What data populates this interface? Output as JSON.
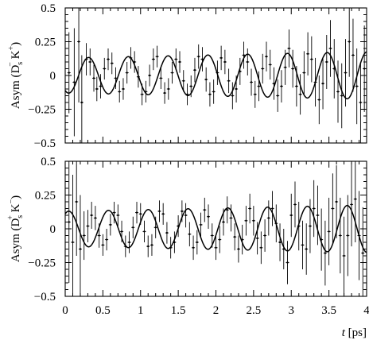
{
  "chart_data": [
    {
      "type": "scatter",
      "panel": "top",
      "ylabel": "Asym (D",
      "ylabel_sub": "s",
      "ylabel_sup": "−",
      "ylabel_tail": " K",
      "ylabel_tail_sup": "+",
      "ylabel_close": ")",
      "xlim": [
        0,
        4
      ],
      "ylim": [
        -0.5,
        0.5
      ],
      "yticks": [
        -0.5,
        -0.25,
        0,
        0.25,
        0.5
      ],
      "ytick_labels": [
        "−0.5",
        "−0.25",
        "0",
        "0.25",
        "0.5"
      ],
      "fit": {
        "amplitude": 0.13,
        "omega": 11.9,
        "phase": 2.6,
        "decay": 0.0
      },
      "points": [
        {
          "x": 0.05,
          "y": 0.02,
          "err": 0.3
        },
        {
          "x": 0.12,
          "y": -0.05,
          "err": 0.4
        },
        {
          "x": 0.18,
          "y": 0.25,
          "err": 0.45
        },
        {
          "x": 0.22,
          "y": -0.2,
          "err": 0.35
        },
        {
          "x": 0.28,
          "y": 0.12,
          "err": 0.12
        },
        {
          "x": 0.33,
          "y": 0.1,
          "err": 0.1
        },
        {
          "x": 0.38,
          "y": -0.02,
          "err": 0.1
        },
        {
          "x": 0.42,
          "y": -0.1,
          "err": 0.09
        },
        {
          "x": 0.47,
          "y": -0.08,
          "err": 0.09
        },
        {
          "x": 0.52,
          "y": 0.05,
          "err": 0.08
        },
        {
          "x": 0.57,
          "y": 0.12,
          "err": 0.08
        },
        {
          "x": 0.62,
          "y": 0.09,
          "err": 0.08
        },
        {
          "x": 0.67,
          "y": -0.02,
          "err": 0.08
        },
        {
          "x": 0.72,
          "y": -0.12,
          "err": 0.08
        },
        {
          "x": 0.77,
          "y": -0.1,
          "err": 0.08
        },
        {
          "x": 0.82,
          "y": 0.02,
          "err": 0.08
        },
        {
          "x": 0.87,
          "y": 0.13,
          "err": 0.08
        },
        {
          "x": 0.92,
          "y": 0.1,
          "err": 0.08
        },
        {
          "x": 0.97,
          "y": -0.01,
          "err": 0.08
        },
        {
          "x": 1.02,
          "y": -0.14,
          "err": 0.08
        },
        {
          "x": 1.07,
          "y": -0.12,
          "err": 0.08
        },
        {
          "x": 1.12,
          "y": 0.0,
          "err": 0.08
        },
        {
          "x": 1.17,
          "y": 0.12,
          "err": 0.08
        },
        {
          "x": 1.22,
          "y": 0.14,
          "err": 0.08
        },
        {
          "x": 1.27,
          "y": -0.02,
          "err": 0.08
        },
        {
          "x": 1.32,
          "y": -0.13,
          "err": 0.08
        },
        {
          "x": 1.37,
          "y": -0.1,
          "err": 0.08
        },
        {
          "x": 1.42,
          "y": 0.02,
          "err": 0.08
        },
        {
          "x": 1.47,
          "y": 0.12,
          "err": 0.08
        },
        {
          "x": 1.52,
          "y": 0.1,
          "err": 0.08
        },
        {
          "x": 1.57,
          "y": -0.04,
          "err": 0.08
        },
        {
          "x": 1.62,
          "y": -0.14,
          "err": 0.08
        },
        {
          "x": 1.67,
          "y": -0.08,
          "err": 0.08
        },
        {
          "x": 1.72,
          "y": 0.04,
          "err": 0.09
        },
        {
          "x": 1.77,
          "y": 0.14,
          "err": 0.09
        },
        {
          "x": 1.82,
          "y": 0.12,
          "err": 0.09
        },
        {
          "x": 1.87,
          "y": -0.03,
          "err": 0.09
        },
        {
          "x": 1.92,
          "y": -0.14,
          "err": 0.09
        },
        {
          "x": 1.97,
          "y": -0.12,
          "err": 0.09
        },
        {
          "x": 2.02,
          "y": 0.02,
          "err": 0.09
        },
        {
          "x": 2.07,
          "y": 0.13,
          "err": 0.09
        },
        {
          "x": 2.12,
          "y": 0.1,
          "err": 0.09
        },
        {
          "x": 2.17,
          "y": -0.04,
          "err": 0.09
        },
        {
          "x": 2.22,
          "y": -0.15,
          "err": 0.1
        },
        {
          "x": 2.27,
          "y": -0.1,
          "err": 0.1
        },
        {
          "x": 2.32,
          "y": 0.03,
          "err": 0.1
        },
        {
          "x": 2.37,
          "y": 0.15,
          "err": 0.1
        },
        {
          "x": 2.42,
          "y": 0.1,
          "err": 0.1
        },
        {
          "x": 2.47,
          "y": -0.05,
          "err": 0.1
        },
        {
          "x": 2.52,
          "y": -0.14,
          "err": 0.1
        },
        {
          "x": 2.57,
          "y": -0.08,
          "err": 0.11
        },
        {
          "x": 2.62,
          "y": 0.05,
          "err": 0.11
        },
        {
          "x": 2.67,
          "y": 0.14,
          "err": 0.11
        },
        {
          "x": 2.72,
          "y": 0.08,
          "err": 0.11
        },
        {
          "x": 2.77,
          "y": -0.06,
          "err": 0.12
        },
        {
          "x": 2.82,
          "y": -0.15,
          "err": 0.12
        },
        {
          "x": 2.87,
          "y": -0.08,
          "err": 0.12
        },
        {
          "x": 2.92,
          "y": 0.06,
          "err": 0.13
        },
        {
          "x": 2.97,
          "y": 0.2,
          "err": 0.14
        },
        {
          "x": 3.02,
          "y": 0.05,
          "err": 0.14
        },
        {
          "x": 3.07,
          "y": -0.08,
          "err": 0.15
        },
        {
          "x": 3.12,
          "y": -0.14,
          "err": 0.15
        },
        {
          "x": 3.17,
          "y": 0.02,
          "err": 0.16
        },
        {
          "x": 3.22,
          "y": 0.16,
          "err": 0.16
        },
        {
          "x": 3.27,
          "y": 0.12,
          "err": 0.17
        },
        {
          "x": 3.32,
          "y": -0.05,
          "err": 0.18
        },
        {
          "x": 3.37,
          "y": -0.18,
          "err": 0.18
        },
        {
          "x": 3.42,
          "y": -0.06,
          "err": 0.19
        },
        {
          "x": 3.47,
          "y": 0.1,
          "err": 0.2
        },
        {
          "x": 3.52,
          "y": 0.2,
          "err": 0.21
        },
        {
          "x": 3.57,
          "y": 0.05,
          "err": 0.22
        },
        {
          "x": 3.62,
          "y": -0.12,
          "err": 0.23
        },
        {
          "x": 3.67,
          "y": -0.15,
          "err": 0.24
        },
        {
          "x": 3.72,
          "y": 0.02,
          "err": 0.25
        },
        {
          "x": 3.77,
          "y": 0.25,
          "err": 0.26
        },
        {
          "x": 3.82,
          "y": 0.15,
          "err": 0.27
        },
        {
          "x": 3.87,
          "y": -0.08,
          "err": 0.28
        },
        {
          "x": 3.92,
          "y": -0.2,
          "err": 0.3
        },
        {
          "x": 3.97,
          "y": 0.05,
          "err": 0.32
        }
      ]
    },
    {
      "type": "scatter",
      "panel": "bottom",
      "ylabel": "Asym (D",
      "ylabel_sub": "s",
      "ylabel_sup": "+",
      "ylabel_tail": " K",
      "ylabel_tail_sup": "−",
      "ylabel_close": ")",
      "xlabel": "t",
      "xlabel_unit": " [ps]",
      "xlim": [
        0,
        4
      ],
      "ylim": [
        -0.5,
        0.5
      ],
      "xticks": [
        0,
        0.5,
        1,
        1.5,
        2,
        2.5,
        3,
        3.5,
        4
      ],
      "xtick_labels": [
        "0",
        "0.5",
        "1",
        "1.5",
        "2",
        "2.5",
        "3",
        "3.5",
        "4"
      ],
      "yticks": [
        -0.5,
        -0.25,
        0,
        0.25,
        0.5
      ],
      "ytick_labels": [
        "−0.5",
        "−0.25",
        "0",
        "0.25",
        "0.5"
      ],
      "fit": {
        "amplitude": 0.13,
        "omega": 11.9,
        "phase": -0.55,
        "decay": 0.0
      },
      "points": [
        {
          "x": 0.05,
          "y": 0.05,
          "err": 0.45
        },
        {
          "x": 0.1,
          "y": -0.1,
          "err": 0.5
        },
        {
          "x": 0.15,
          "y": 0.2,
          "err": 0.4
        },
        {
          "x": 0.2,
          "y": -0.15,
          "err": 0.4
        },
        {
          "x": 0.25,
          "y": -0.05,
          "err": 0.18
        },
        {
          "x": 0.3,
          "y": 0.02,
          "err": 0.12
        },
        {
          "x": 0.35,
          "y": 0.1,
          "err": 0.1
        },
        {
          "x": 0.4,
          "y": 0.08,
          "err": 0.09
        },
        {
          "x": 0.45,
          "y": -0.05,
          "err": 0.09
        },
        {
          "x": 0.5,
          "y": -0.12,
          "err": 0.08
        },
        {
          "x": 0.55,
          "y": -0.08,
          "err": 0.08
        },
        {
          "x": 0.6,
          "y": 0.03,
          "err": 0.08
        },
        {
          "x": 0.65,
          "y": 0.12,
          "err": 0.08
        },
        {
          "x": 0.7,
          "y": 0.1,
          "err": 0.08
        },
        {
          "x": 0.75,
          "y": -0.02,
          "err": 0.08
        },
        {
          "x": 0.8,
          "y": -0.13,
          "err": 0.08
        },
        {
          "x": 0.85,
          "y": -0.1,
          "err": 0.08
        },
        {
          "x": 0.9,
          "y": 0.01,
          "err": 0.08
        },
        {
          "x": 0.95,
          "y": 0.12,
          "err": 0.08
        },
        {
          "x": 1.0,
          "y": 0.11,
          "err": 0.08
        },
        {
          "x": 1.05,
          "y": -0.02,
          "err": 0.08
        },
        {
          "x": 1.1,
          "y": -0.13,
          "err": 0.08
        },
        {
          "x": 1.15,
          "y": -0.12,
          "err": 0.08
        },
        {
          "x": 1.2,
          "y": 0.01,
          "err": 0.08
        },
        {
          "x": 1.25,
          "y": 0.13,
          "err": 0.08
        },
        {
          "x": 1.3,
          "y": 0.11,
          "err": 0.08
        },
        {
          "x": 1.35,
          "y": -0.03,
          "err": 0.08
        },
        {
          "x": 1.4,
          "y": -0.14,
          "err": 0.08
        },
        {
          "x": 1.45,
          "y": -0.1,
          "err": 0.08
        },
        {
          "x": 1.5,
          "y": 0.02,
          "err": 0.08
        },
        {
          "x": 1.55,
          "y": 0.13,
          "err": 0.08
        },
        {
          "x": 1.6,
          "y": 0.1,
          "err": 0.09
        },
        {
          "x": 1.65,
          "y": -0.04,
          "err": 0.09
        },
        {
          "x": 1.7,
          "y": -0.14,
          "err": 0.09
        },
        {
          "x": 1.75,
          "y": -0.1,
          "err": 0.09
        },
        {
          "x": 1.8,
          "y": 0.03,
          "err": 0.09
        },
        {
          "x": 1.85,
          "y": 0.14,
          "err": 0.09
        },
        {
          "x": 1.9,
          "y": 0.09,
          "err": 0.09
        },
        {
          "x": 1.95,
          "y": -0.05,
          "err": 0.09
        },
        {
          "x": 2.0,
          "y": -0.14,
          "err": 0.09
        },
        {
          "x": 2.05,
          "y": -0.08,
          "err": 0.1
        },
        {
          "x": 2.1,
          "y": 0.05,
          "err": 0.1
        },
        {
          "x": 2.15,
          "y": 0.14,
          "err": 0.1
        },
        {
          "x": 2.2,
          "y": 0.08,
          "err": 0.1
        },
        {
          "x": 2.25,
          "y": -0.06,
          "err": 0.1
        },
        {
          "x": 2.3,
          "y": -0.15,
          "err": 0.1
        },
        {
          "x": 2.35,
          "y": -0.08,
          "err": 0.11
        },
        {
          "x": 2.4,
          "y": 0.06,
          "err": 0.11
        },
        {
          "x": 2.45,
          "y": 0.15,
          "err": 0.11
        },
        {
          "x": 2.5,
          "y": 0.06,
          "err": 0.11
        },
        {
          "x": 2.55,
          "y": -0.07,
          "err": 0.12
        },
        {
          "x": 2.6,
          "y": -0.14,
          "err": 0.12
        },
        {
          "x": 2.65,
          "y": -0.05,
          "err": 0.12
        },
        {
          "x": 2.7,
          "y": 0.08,
          "err": 0.13
        },
        {
          "x": 2.75,
          "y": 0.15,
          "err": 0.13
        },
        {
          "x": 2.8,
          "y": 0.04,
          "err": 0.14
        },
        {
          "x": 2.85,
          "y": -0.1,
          "err": 0.14
        },
        {
          "x": 2.9,
          "y": -0.15,
          "err": 0.15
        },
        {
          "x": 2.95,
          "y": -0.25,
          "err": 0.16
        },
        {
          "x": 3.0,
          "y": 0.1,
          "err": 0.16
        },
        {
          "x": 3.05,
          "y": 0.18,
          "err": 0.17
        },
        {
          "x": 3.1,
          "y": 0.02,
          "err": 0.18
        },
        {
          "x": 3.15,
          "y": -0.12,
          "err": 0.18
        },
        {
          "x": 3.2,
          "y": -0.15,
          "err": 0.19
        },
        {
          "x": 3.25,
          "y": 0.02,
          "err": 0.2
        },
        {
          "x": 3.3,
          "y": 0.15,
          "err": 0.21
        },
        {
          "x": 3.35,
          "y": 0.1,
          "err": 0.22
        },
        {
          "x": 3.4,
          "y": -0.08,
          "err": 0.23
        },
        {
          "x": 3.45,
          "y": -0.18,
          "err": 0.24
        },
        {
          "x": 3.5,
          "y": -0.02,
          "err": 0.25
        },
        {
          "x": 3.55,
          "y": 0.15,
          "err": 0.26
        },
        {
          "x": 3.6,
          "y": 0.2,
          "err": 0.27
        },
        {
          "x": 3.65,
          "y": -0.05,
          "err": 0.28
        },
        {
          "x": 3.7,
          "y": -0.2,
          "err": 0.29
        },
        {
          "x": 3.75,
          "y": -0.05,
          "err": 0.3
        },
        {
          "x": 3.8,
          "y": 0.18,
          "err": 0.31
        },
        {
          "x": 3.85,
          "y": 0.22,
          "err": 0.32
        },
        {
          "x": 3.9,
          "y": -0.05,
          "err": 0.33
        },
        {
          "x": 3.95,
          "y": -0.18,
          "err": 0.34
        }
      ]
    }
  ]
}
